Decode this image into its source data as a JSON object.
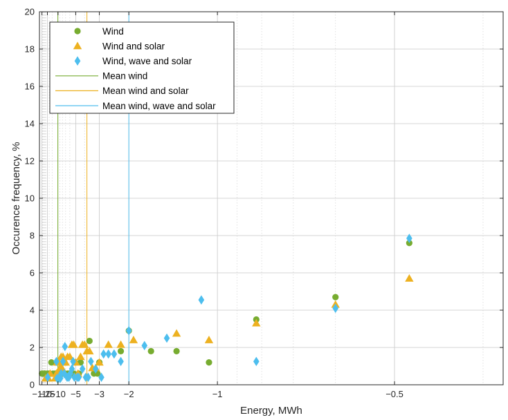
{
  "chart_data": {
    "type": "scatter",
    "xlabel": "Energy, MWh",
    "ylabel": "Occurence frequency, %",
    "x_scale": "reciprocal",
    "x_tick_values": [
      -110,
      -25,
      -10,
      -5,
      -3,
      -2,
      -1,
      -0.5
    ],
    "x_tick_labels": [
      "−110",
      "−25",
      "−10",
      "−5",
      "−3",
      "−2",
      "−1",
      "−0.5"
    ],
    "x_minor_grid_values": [
      -100,
      -90,
      -80,
      -70,
      -60,
      -50,
      -40,
      -35,
      -30,
      -20,
      -15,
      -9,
      -8,
      -7,
      -6,
      -4,
      -0.9,
      -0.8,
      -0.7,
      -0.6,
      -0.4
    ],
    "ylim": [
      0,
      20
    ],
    "y_ticks": [
      0,
      2,
      4,
      6,
      8,
      10,
      12,
      14,
      16,
      18,
      20
    ],
    "grid": true,
    "legend_position": "top-left",
    "series": [
      {
        "name": "Wind",
        "marker": "circle",
        "color": "#77AC30",
        "points": [
          [
            -105,
            0.6
          ],
          [
            -75,
            0.6
          ],
          [
            -48,
            0.6
          ],
          [
            -44,
            0.6
          ],
          [
            -41,
            0.6
          ],
          [
            -37,
            0.6
          ],
          [
            -26,
            0.6
          ],
          [
            -22,
            0.6
          ],
          [
            -19,
            0.6
          ],
          [
            -16,
            1.2
          ],
          [
            -14,
            0.6
          ],
          [
            -12,
            0.6
          ],
          [
            -11,
            0.6
          ],
          [
            -10,
            1.2
          ],
          [
            -9.5,
            0.6
          ],
          [
            -8,
            0.6
          ],
          [
            -7.2,
            0.6
          ],
          [
            -6.5,
            0.6
          ],
          [
            -6.2,
            0.6
          ],
          [
            -5.8,
            0.6
          ],
          [
            -5.3,
            0.6
          ],
          [
            -5.1,
            1.2
          ],
          [
            -4.6,
            0.6
          ],
          [
            -4.4,
            1.2
          ],
          [
            -3.6,
            2.35
          ],
          [
            -3.3,
            0.6
          ],
          [
            -3.1,
            0.6
          ],
          [
            -3.0,
            1.2
          ],
          [
            -2.2,
            1.8
          ],
          [
            -2.0,
            2.9
          ],
          [
            -1.6,
            1.8
          ],
          [
            -1.3,
            1.8
          ],
          [
            -1.05,
            1.2
          ],
          [
            -0.82,
            3.5
          ],
          [
            -0.6,
            4.7
          ],
          [
            -0.48,
            7.6
          ]
        ]
      },
      {
        "name": "Wind and solar",
        "marker": "triangle",
        "color": "#EDB120",
        "points": [
          [
            -33,
            0.35
          ],
          [
            -25,
            0.35
          ],
          [
            -22,
            0.35
          ],
          [
            -18,
            0.6
          ],
          [
            -12,
            0.35
          ],
          [
            -11,
            0.6
          ],
          [
            -10.5,
            1.2
          ],
          [
            -10,
            0.6
          ],
          [
            -9.5,
            1.2
          ],
          [
            -9.0,
            0.9
          ],
          [
            -8.5,
            1.5
          ],
          [
            -8.2,
            0.9
          ],
          [
            -7.8,
            1.5
          ],
          [
            -7.5,
            1.2
          ],
          [
            -7.0,
            1.2
          ],
          [
            -6.5,
            1.5
          ],
          [
            -6.0,
            1.5
          ],
          [
            -5.6,
            2.15
          ],
          [
            -5.3,
            2.15
          ],
          [
            -5.0,
            1.2
          ],
          [
            -4.7,
            0.6
          ],
          [
            -4.4,
            1.5
          ],
          [
            -4.2,
            2.15
          ],
          [
            -4.0,
            2.15
          ],
          [
            -3.8,
            1.8
          ],
          [
            -3.6,
            1.8
          ],
          [
            -3.4,
            0.9
          ],
          [
            -3.2,
            0.9
          ],
          [
            -3.0,
            1.2
          ],
          [
            -2.6,
            2.15
          ],
          [
            -2.2,
            2.15
          ],
          [
            -1.9,
            2.4
          ],
          [
            -1.3,
            2.75
          ],
          [
            -1.05,
            2.4
          ],
          [
            -0.82,
            3.3
          ],
          [
            -0.6,
            4.3
          ],
          [
            -0.48,
            5.7
          ]
        ]
      },
      {
        "name": "Wind, wave and solar",
        "marker": "diamond",
        "color": "#4DBEEE",
        "points": [
          [
            -24,
            0.4
          ],
          [
            -11,
            1.25
          ],
          [
            -10.5,
            0.35
          ],
          [
            -9.5,
            0.35
          ],
          [
            -8.8,
            0.35
          ],
          [
            -8.5,
            0.6
          ],
          [
            -7.8,
            1.25
          ],
          [
            -7.4,
            0.6
          ],
          [
            -7.2,
            2.05
          ],
          [
            -6.6,
            0.4
          ],
          [
            -6.2,
            0.4
          ],
          [
            -5.9,
            0.6
          ],
          [
            -5.6,
            0.85
          ],
          [
            -5.4,
            1.25
          ],
          [
            -5.2,
            0.4
          ],
          [
            -4.8,
            0.4
          ],
          [
            -4.6,
            0.4
          ],
          [
            -4.2,
            0.85
          ],
          [
            -3.9,
            0.4
          ],
          [
            -3.7,
            0.4
          ],
          [
            -3.5,
            1.25
          ],
          [
            -3.2,
            0.85
          ],
          [
            -2.9,
            0.4
          ],
          [
            -2.8,
            1.65
          ],
          [
            -2.6,
            1.65
          ],
          [
            -2.4,
            1.65
          ],
          [
            -2.2,
            1.25
          ],
          [
            -2.0,
            2.9
          ],
          [
            -1.7,
            2.1
          ],
          [
            -1.4,
            2.5
          ],
          [
            -1.1,
            4.55
          ],
          [
            -0.82,
            1.25
          ],
          [
            -0.6,
            4.1
          ],
          [
            -0.48,
            7.85
          ]
        ]
      }
    ],
    "reference_lines": [
      {
        "name": "Mean wind",
        "x": -10.1,
        "color": "#77AC30"
      },
      {
        "name": "Mean wind and solar",
        "x": -3.8,
        "color": "#EDB120"
      },
      {
        "name": "Mean wind, wave and solar",
        "x": -2.0,
        "color": "#4DBEEE"
      }
    ]
  }
}
